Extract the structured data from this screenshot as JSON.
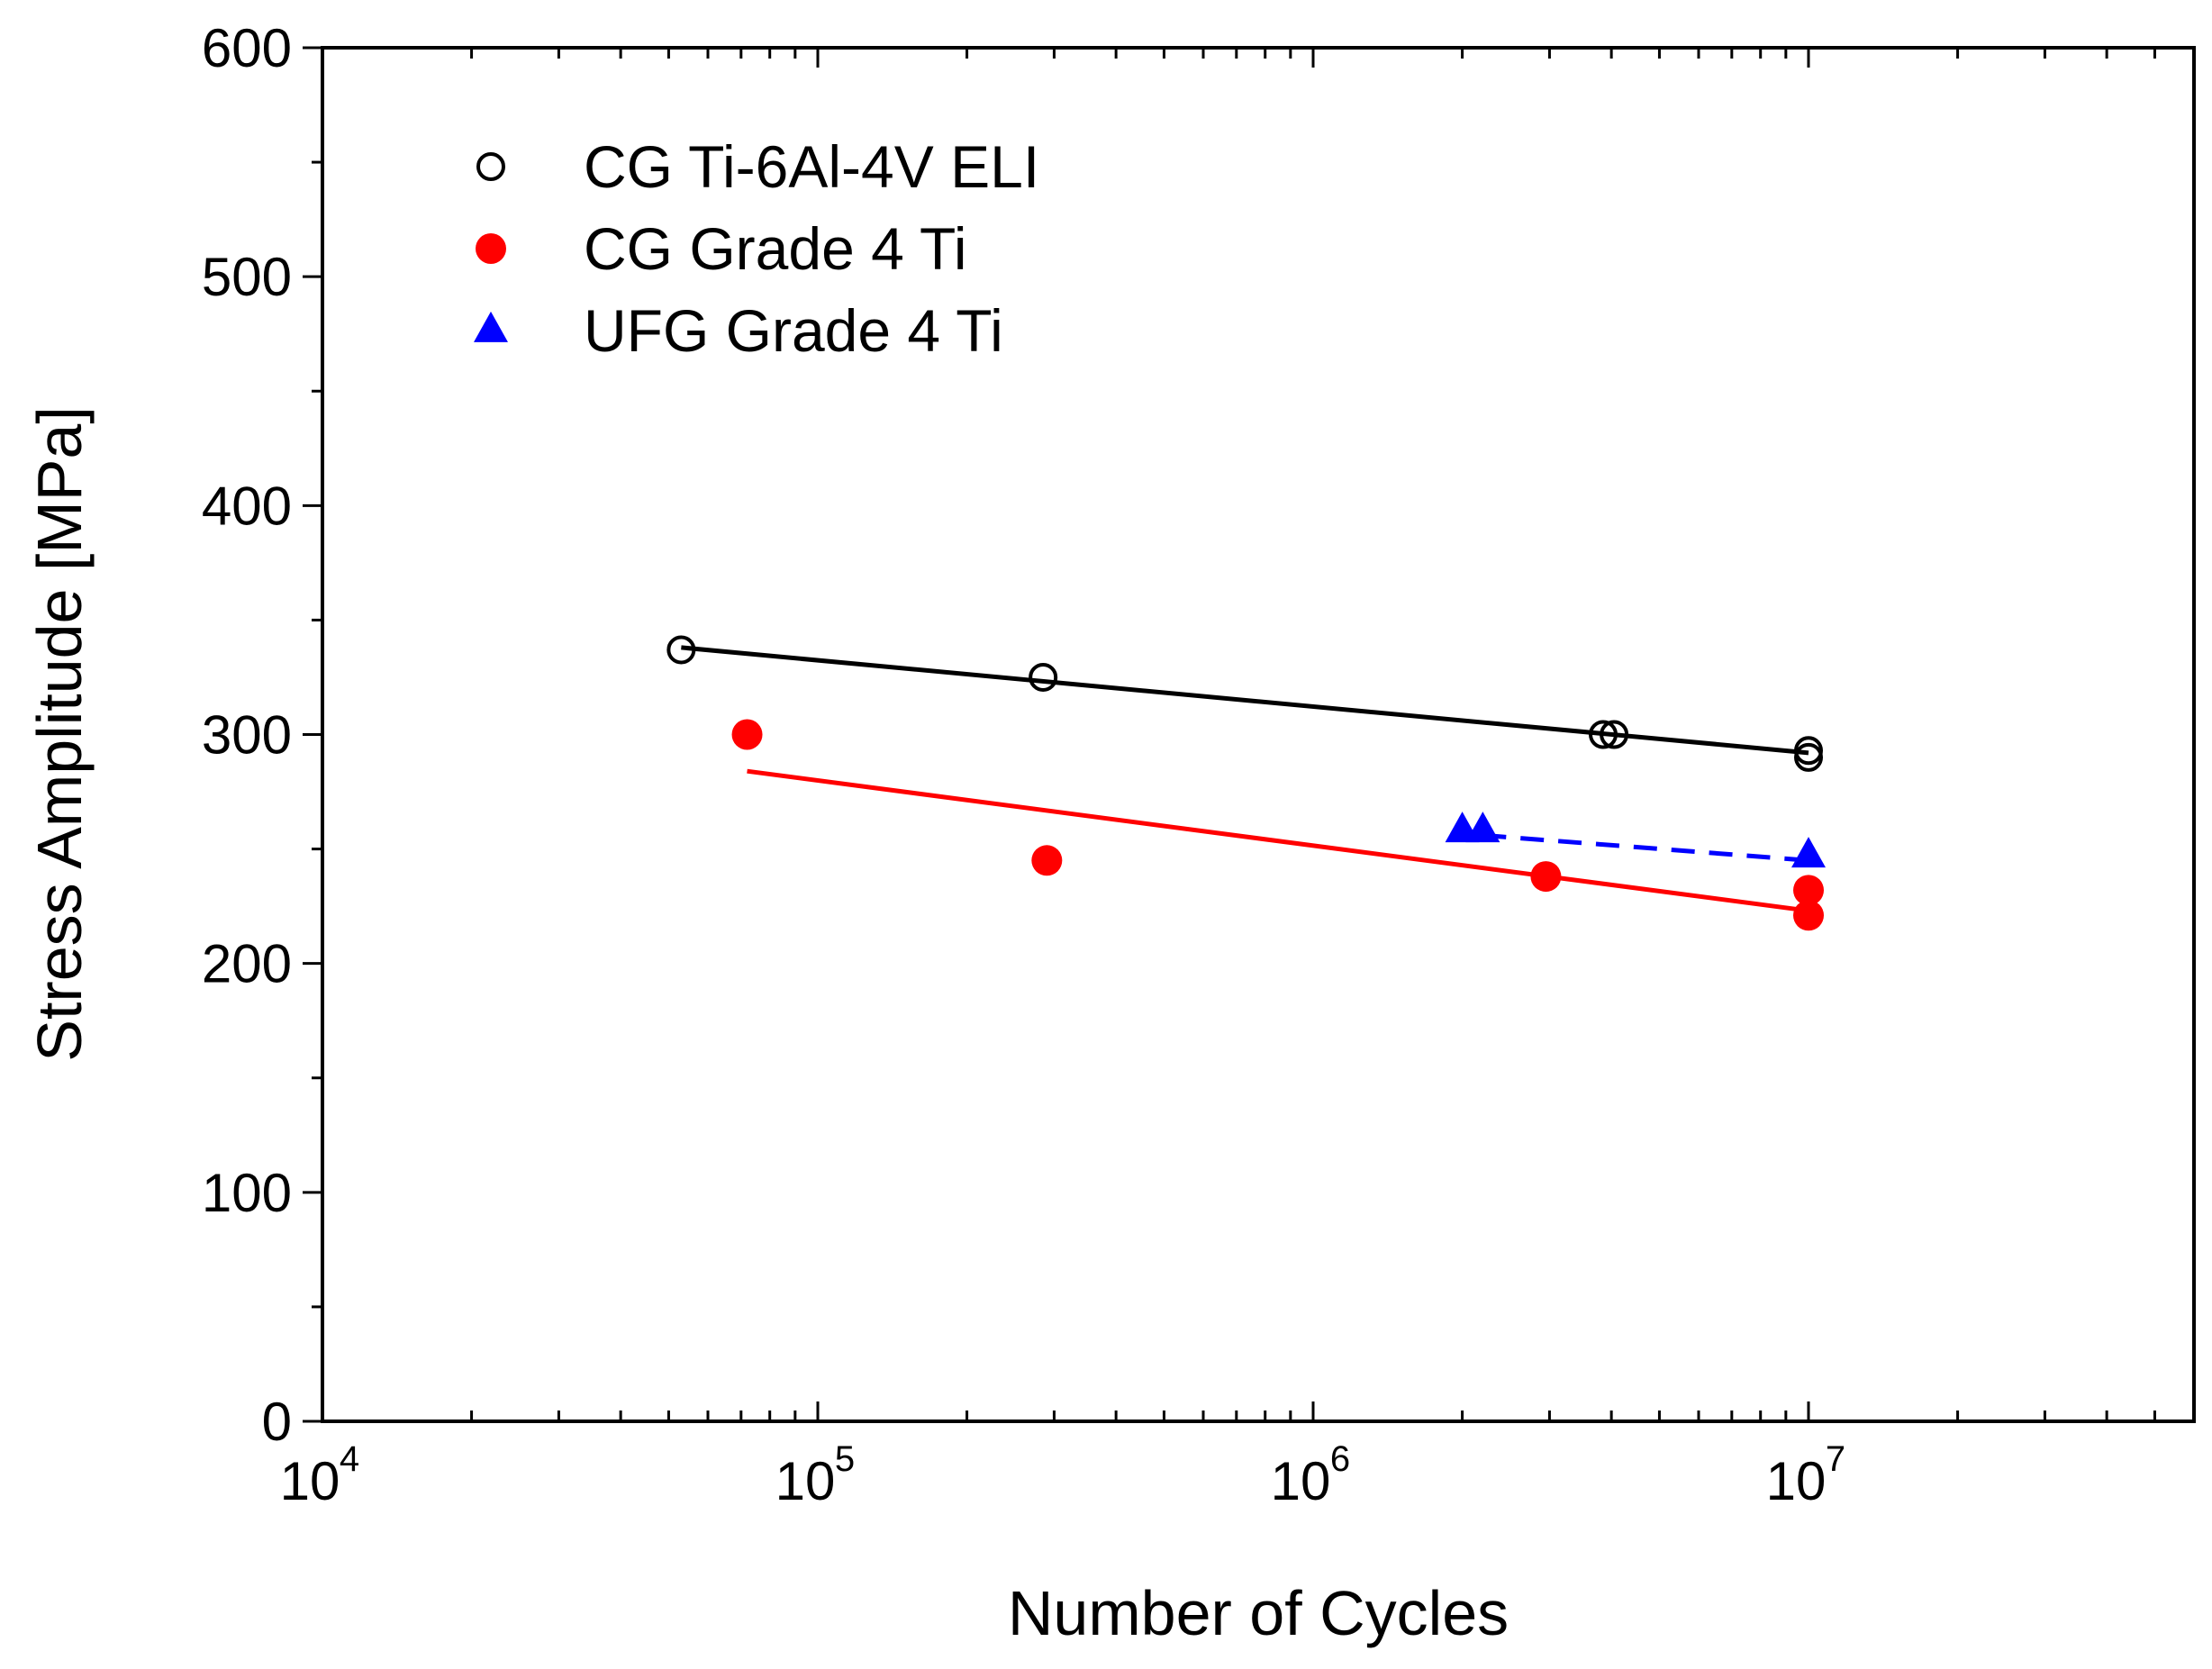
{
  "chart_data": {
    "type": "scatter",
    "title": "",
    "xlabel": "Number of Cycles",
    "ylabel": "Stress Amplitude [MPa]",
    "xscale": "log",
    "xlim": [
      10000,
      60000000
    ],
    "ylim": [
      0,
      600
    ],
    "x_ticks": [
      {
        "base": "10",
        "exp": "4",
        "value": 10000
      },
      {
        "base": "10",
        "exp": "5",
        "value": 100000
      },
      {
        "base": "10",
        "exp": "6",
        "value": 1000000
      },
      {
        "base": "10",
        "exp": "7",
        "value": 10000000
      }
    ],
    "y_ticks": [
      0,
      100,
      200,
      300,
      400,
      500,
      600
    ],
    "y_tick_labels": [
      "0",
      "100",
      "200",
      "300",
      "400",
      "500",
      "600"
    ],
    "grid": false,
    "legend_position": "top-left",
    "series": [
      {
        "name": "CG Ti-6Al-4V ELI",
        "marker": "open-circle",
        "color": "#000000",
        "points": [
          {
            "x": 53000,
            "y": 337
          },
          {
            "x": 285000,
            "y": 325
          },
          {
            "x": 3850000,
            "y": 300
          },
          {
            "x": 4050000,
            "y": 300
          },
          {
            "x": 10000000,
            "y": 293
          },
          {
            "x": 10000000,
            "y": 290
          }
        ],
        "fit": {
          "style": "solid",
          "color": "#000000",
          "x": [
            53000,
            10000000
          ],
          "y": [
            338,
            292
          ]
        }
      },
      {
        "name": "CG Grade 4 Ti",
        "marker": "filled-circle",
        "color": "#ff0000",
        "points": [
          {
            "x": 72000,
            "y": 300
          },
          {
            "x": 290000,
            "y": 245
          },
          {
            "x": 2950000,
            "y": 238
          },
          {
            "x": 10000000,
            "y": 232
          },
          {
            "x": 10000000,
            "y": 221
          }
        ],
        "fit": {
          "style": "solid",
          "color": "#ff0000",
          "x": [
            72000,
            10000000
          ],
          "y": [
            284,
            223
          ]
        }
      },
      {
        "name": "UFG Grade 4 Ti",
        "marker": "filled-triangle",
        "color": "#0000ff",
        "points": [
          {
            "x": 2000000,
            "y": 258
          },
          {
            "x": 2200000,
            "y": 258
          },
          {
            "x": 10000000,
            "y": 247
          }
        ],
        "fit": {
          "style": "dashed",
          "color": "#0000ff",
          "x": [
            2200000,
            10000000
          ],
          "y": [
            256,
            245
          ]
        }
      }
    ]
  }
}
